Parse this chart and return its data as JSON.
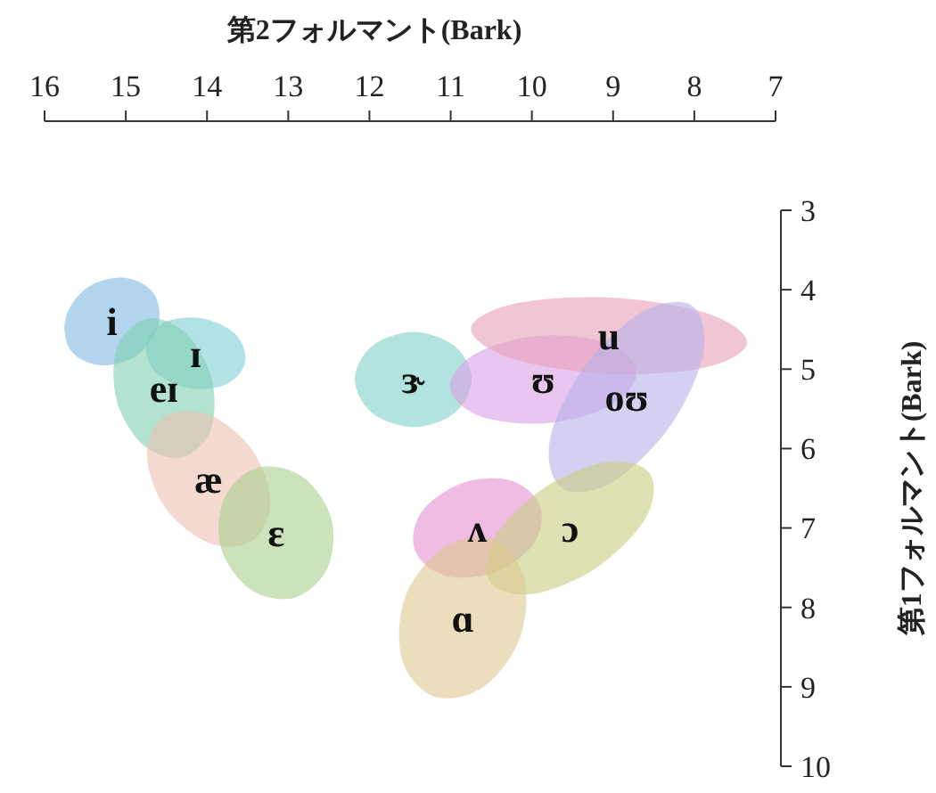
{
  "chart_data": {
    "type": "area",
    "xlabel": "第2フォルマント(Bark)",
    "ylabel": "第1フォルマント(Bark)",
    "xlim": [
      16,
      7
    ],
    "xticks": [
      16,
      15,
      14,
      13,
      12,
      11,
      10,
      9,
      8,
      7
    ],
    "ylim": [
      10,
      3
    ],
    "yticks": [
      3,
      4,
      5,
      6,
      7,
      8,
      9,
      10
    ],
    "series": [
      {
        "name": "i",
        "color": "#7fb8e0",
        "x": [
          14.66,
          14.6,
          14.87,
          15.32,
          15.68,
          15.74,
          15.47,
          15.02
        ],
        "values": [
          4.04,
          4.45,
          4.83,
          4.95,
          4.76,
          4.35,
          3.97,
          3.85
        ]
      },
      {
        "name": "ɪ",
        "color": "#80cfd6",
        "x": [
          13.53,
          13.76,
          14.22,
          14.63,
          14.75,
          14.52,
          14.06,
          13.65
        ],
        "values": [
          4.91,
          5.19,
          5.24,
          5.04,
          4.69,
          4.41,
          4.36,
          4.56
        ]
      },
      {
        "name": "eɪ",
        "color": "#7fd0b0",
        "x": [
          14.3,
          14.78,
          15.11,
          15.11,
          14.76,
          14.29,
          13.95,
          13.95
        ],
        "values": [
          6.11,
          5.96,
          5.4,
          4.74,
          4.37,
          4.52,
          5.09,
          5.75
        ]
      },
      {
        "name": "æ",
        "color": "#ecc0b3",
        "x": [
          13.44,
          13.97,
          14.51,
          14.74,
          14.53,
          13.99,
          13.45,
          13.22
        ],
        "values": [
          7.16,
          7.19,
          6.75,
          6.09,
          5.6,
          5.57,
          6.01,
          6.67
        ]
      },
      {
        "name": "ɛ",
        "color": "#a8cf8c",
        "x": [
          12.93,
          13.47,
          13.83,
          13.78,
          13.37,
          12.83,
          12.47,
          12.52
        ],
        "values": [
          7.88,
          7.77,
          7.24,
          6.61,
          6.24,
          6.35,
          6.88,
          7.51
        ]
      },
      {
        "name": "ɝ",
        "color": "#80d0c8",
        "x": [
          10.74,
          10.95,
          11.46,
          11.97,
          12.18,
          11.97,
          11.46,
          10.95
        ],
        "values": [
          5.13,
          5.55,
          5.73,
          5.55,
          5.13,
          4.71,
          4.53,
          4.71
        ]
      },
      {
        "name": "ʊ",
        "color": "#d9a0e6",
        "x": [
          8.71,
          9.02,
          9.81,
          10.64,
          11.01,
          10.7,
          9.91,
          9.08
        ],
        "values": [
          5.03,
          5.45,
          5.68,
          5.59,
          5.23,
          4.81,
          4.58,
          4.67
        ]
      },
      {
        "name": "u",
        "color": "#e8a0b8",
        "x": [
          7.35,
          7.87,
          9.08,
          10.27,
          10.75,
          10.23,
          9.03,
          7.83
        ],
        "values": [
          4.67,
          4.98,
          5.06,
          4.86,
          4.49,
          4.18,
          4.1,
          4.3
        ]
      },
      {
        "name": "oʊ",
        "color": "#b8b0ea",
        "x": [
          8.03,
          7.89,
          8.3,
          9.02,
          9.63,
          9.78,
          9.36,
          8.64
        ],
        "values": [
          4.2,
          4.8,
          5.72,
          6.43,
          6.5,
          5.9,
          4.98,
          4.28
        ]
      },
      {
        "name": "ʌ",
        "color": "#e590d0",
        "x": [
          9.9,
          9.98,
          10.47,
          11.07,
          11.44,
          11.36,
          10.87,
          10.27
        ],
        "values": [
          6.72,
          7.2,
          7.56,
          7.6,
          7.28,
          6.8,
          6.44,
          6.4
        ]
      },
      {
        "name": "ɔ",
        "color": "#c8cf80",
        "x": [
          8.55,
          8.59,
          9.19,
          9.98,
          10.51,
          10.47,
          9.87,
          9.08
        ],
        "values": [
          6.31,
          6.86,
          7.49,
          7.83,
          7.69,
          7.14,
          6.51,
          6.17
        ]
      },
      {
        "name": "ɑ",
        "color": "#ddc890",
        "x": [
          10.49,
          10.1,
          10.15,
          10.61,
          11.21,
          11.6,
          11.56,
          11.09
        ],
        "values": [
          7.14,
          7.61,
          8.39,
          9.01,
          9.12,
          8.65,
          7.87,
          7.25
        ]
      }
    ]
  }
}
